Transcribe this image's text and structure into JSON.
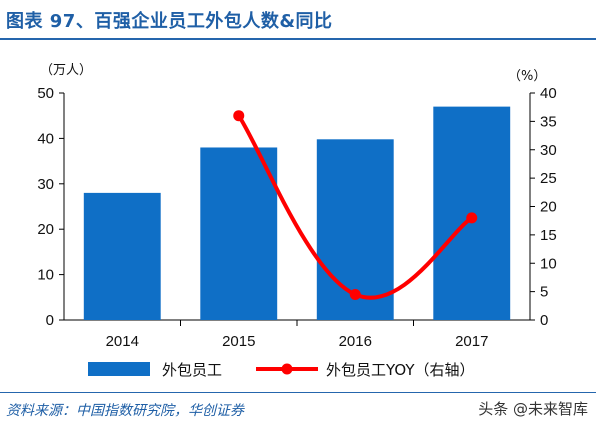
{
  "header": {
    "title": "图表 97、百强企业员工外包人数&同比"
  },
  "footer": {
    "source": "资料来源：中国指数研究院，华创证券",
    "watermark": "头条 @未来智库"
  },
  "colors": {
    "bar": "#0f6fc6",
    "line": "#ff0000",
    "title": "#1f5fa6"
  },
  "chart_data": {
    "type": "bar",
    "categories": [
      "2014",
      "2015",
      "2016",
      "2017"
    ],
    "series": [
      {
        "name": "外包员工",
        "type": "bar",
        "axis": "left",
        "values": [
          28,
          38,
          39.8,
          47
        ]
      },
      {
        "name": "外包员工YOY（右轴）",
        "type": "line",
        "axis": "right",
        "values": [
          null,
          36,
          4.5,
          18
        ]
      }
    ],
    "y_left": {
      "unit": "（万人）",
      "ylim": [
        0,
        50
      ],
      "ticks": [
        "0",
        "10",
        "20",
        "30",
        "40",
        "50"
      ]
    },
    "y_right": {
      "unit": "（%）",
      "ylim": [
        0,
        40
      ],
      "ticks": [
        "0",
        "5",
        "10",
        "15",
        "20",
        "25",
        "30",
        "35",
        "40"
      ]
    },
    "legend_position": "bottom",
    "grid": false
  }
}
